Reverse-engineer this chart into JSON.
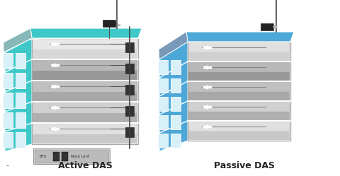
{
  "label_left": "Active DAS",
  "label_right": "Passive DAS",
  "bg_color": "#ffffff",
  "teal_color": "#3ec8c8",
  "blue_color": "#4da8d8",
  "gray_side": "#9ab0b0",
  "gray_side_right": "#8899aa",
  "floor_colors": [
    "#d8d8d8",
    "#b8b8b8",
    "#c8c8c8",
    "#a8a8a8",
    "#d0d0d0"
  ],
  "floor_shadow": [
    "#c0c0c0",
    "#a0a0a0",
    "#b0b0b0",
    "#909090",
    "#c0c0c0"
  ],
  "window_color": "#d8f0f8",
  "window_edge": "#ffffff",
  "roof_teal": "#3ec8c8",
  "roof_blue": "#4da8d8",
  "roof_gray_teal": "#7ab8b8",
  "roof_gray_blue": "#7899b8",
  "cable_color": "#555555",
  "amp_color": "#333333",
  "unit_bg": "#cccccc",
  "ant_color": "#888888",
  "line_color": "#777777"
}
